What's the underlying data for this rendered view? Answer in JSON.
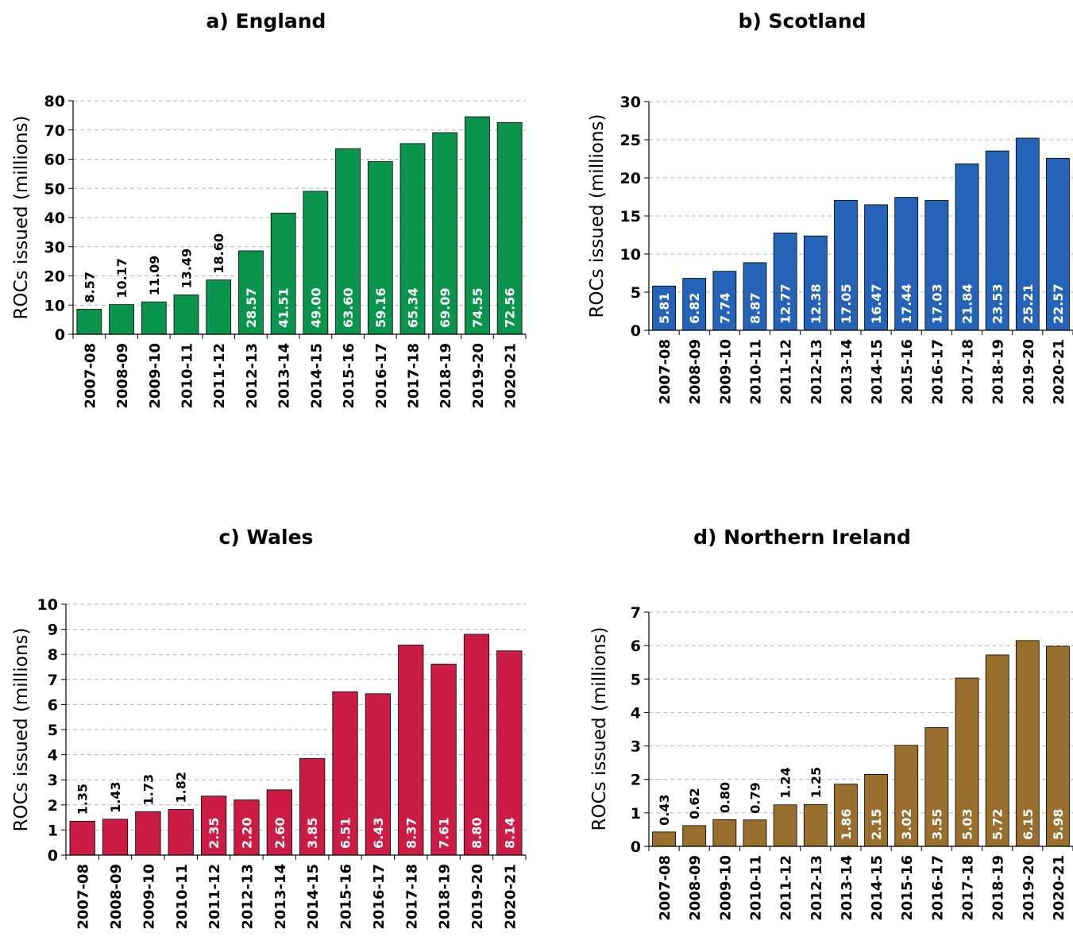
{
  "chart_data": [
    {
      "type": "bar",
      "title": "a) England",
      "ylabel": "ROCs issued (millions)",
      "xlabel": "",
      "categories": [
        "2007-08",
        "2008-09",
        "2009-10",
        "2010-11",
        "2011-12",
        "2012-13",
        "2013-14",
        "2014-15",
        "2015-16",
        "2016-17",
        "2017-18",
        "2018-19",
        "2019-20",
        "2020-21"
      ],
      "values": [
        8.57,
        10.17,
        11.09,
        13.49,
        18.6,
        28.57,
        41.51,
        49.0,
        63.6,
        59.16,
        65.34,
        69.09,
        74.55,
        72.56
      ],
      "labels": [
        "8.57",
        "10.17",
        "11.09",
        "13.49",
        "18.60",
        "28.57",
        "41.51",
        "49.00",
        "63.60",
        "59.16",
        "65.34",
        "69.09",
        "74.55",
        "72.56"
      ],
      "ylim": [
        0,
        80
      ],
      "yticks": [
        0,
        10,
        20,
        30,
        40,
        50,
        60,
        70,
        80
      ],
      "inside_threshold": 20,
      "color": "#0b944c",
      "grid": true
    },
    {
      "type": "bar",
      "title": "b) Scotland",
      "ylabel": "ROCs issued (millions)",
      "xlabel": "",
      "categories": [
        "2007-08",
        "2008-09",
        "2009-10",
        "2010-11",
        "2011-12",
        "2012-13",
        "2013-14",
        "2014-15",
        "2015-16",
        "2016-17",
        "2017-18",
        "2018-19",
        "2019-20",
        "2020-21"
      ],
      "values": [
        5.81,
        6.82,
        7.74,
        8.87,
        12.77,
        12.38,
        17.05,
        16.47,
        17.44,
        17.03,
        21.84,
        23.53,
        25.21,
        22.57
      ],
      "labels": [
        "5.81",
        "6.82",
        "7.74",
        "8.87",
        "12.77",
        "12.38",
        "17.05",
        "16.47",
        "17.44",
        "17.03",
        "21.84",
        "23.53",
        "25.21",
        "22.57"
      ],
      "ylim": [
        0,
        30
      ],
      "yticks": [
        0,
        5,
        10,
        15,
        20,
        25,
        30
      ],
      "inside_threshold": 0,
      "color": "#2563b8",
      "grid": true
    },
    {
      "type": "bar",
      "title": "c) Wales",
      "ylabel": "ROCs issued (millions)",
      "xlabel": "",
      "categories": [
        "2007-08",
        "2008-09",
        "2009-10",
        "2010-11",
        "2011-12",
        "2012-13",
        "2013-14",
        "2014-15",
        "2015-16",
        "2016-17",
        "2017-18",
        "2018-19",
        "2019-20",
        "2020-21"
      ],
      "values": [
        1.35,
        1.43,
        1.73,
        1.82,
        2.35,
        2.2,
        2.6,
        3.85,
        6.51,
        6.43,
        8.37,
        7.61,
        8.8,
        8.14
      ],
      "labels": [
        "1.35",
        "1.43",
        "1.73",
        "1.82",
        "2.35",
        "2.20",
        "2.60",
        "3.85",
        "6.51",
        "6.43",
        "8.37",
        "7.61",
        "8.80",
        "8.14"
      ],
      "ylim": [
        0,
        10
      ],
      "yticks": [
        0,
        1,
        2,
        3,
        4,
        5,
        6,
        7,
        8,
        9,
        10
      ],
      "inside_threshold": 2,
      "color": "#cc1c45",
      "grid": true
    },
    {
      "type": "bar",
      "title": "d) Northern Ireland",
      "ylabel": "ROCs issued (millions)",
      "xlabel": "",
      "categories": [
        "2007-08",
        "2008-09",
        "2009-10",
        "2010-11",
        "2011-12",
        "2012-13",
        "2013-14",
        "2014-15",
        "2015-16",
        "2016-17",
        "2017-18",
        "2018-19",
        "2019-20",
        "2020-21"
      ],
      "values": [
        0.43,
        0.62,
        0.8,
        0.79,
        1.24,
        1.25,
        1.86,
        2.15,
        3.02,
        3.55,
        5.03,
        5.72,
        6.15,
        5.98
      ],
      "labels": [
        "0.43",
        "0.62",
        "0.80",
        "0.79",
        "1.24",
        "1.25",
        "1.86",
        "2.15",
        "3.02",
        "3.55",
        "5.03",
        "5.72",
        "6.15",
        "5.98"
      ],
      "ylim": [
        0,
        7
      ],
      "yticks": [
        0,
        1,
        2,
        3,
        4,
        5,
        6,
        7
      ],
      "inside_threshold": 1.5,
      "color": "#9a6e2c",
      "grid": true
    }
  ]
}
